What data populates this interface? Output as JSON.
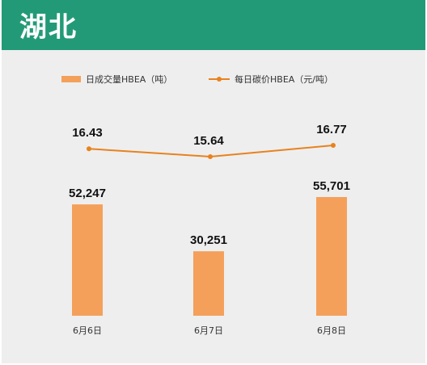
{
  "header": {
    "title": "湖北"
  },
  "chart_data": {
    "type": "bar+line",
    "categories": [
      "6月6日",
      "6月7日",
      "6月8日"
    ],
    "series": [
      {
        "name": "日成交量HBEA（吨）",
        "type": "bar",
        "values": [
          52247,
          30251,
          55701
        ],
        "labels": [
          "52,247",
          "30,251",
          "55,701"
        ],
        "color": "#f4a05b"
      },
      {
        "name": "每日碳价HBEA（元/吨）",
        "type": "line",
        "values": [
          16.43,
          15.64,
          16.77
        ],
        "labels": [
          "16.43",
          "15.64",
          "16.77"
        ],
        "color": "#e8821e"
      }
    ],
    "legend_position": "top",
    "grid": false
  }
}
